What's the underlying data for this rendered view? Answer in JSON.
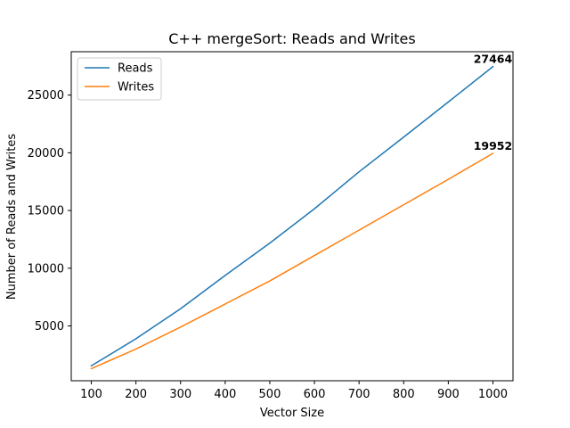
{
  "chart_data": {
    "type": "line",
    "title": "C++ mergeSort: Reads and Writes",
    "xlabel": "Vector Size",
    "ylabel": "Number of Reads and Writes",
    "x": [
      100,
      200,
      300,
      400,
      500,
      600,
      700,
      800,
      900,
      1000
    ],
    "xticks": [
      100,
      200,
      300,
      400,
      500,
      600,
      700,
      800,
      900,
      1000
    ],
    "yticks": [
      5000,
      10000,
      15000,
      20000,
      25000
    ],
    "xlim": [
      55,
      1045
    ],
    "ylim": [
      251,
      28757
    ],
    "grid": false,
    "legend_position": "upper-left",
    "series": [
      {
        "name": "Reads",
        "color": "#1f77b4",
        "values": [
          1544,
          3888,
          6488,
          9376,
          12176,
          15152,
          18352,
          21360,
          24400,
          27464
        ]
      },
      {
        "name": "Writes",
        "color": "#ff7f0e",
        "values": [
          1300,
          3000,
          4900,
          6900,
          8900,
          11100,
          13300,
          15500,
          17700,
          19952
        ]
      }
    ],
    "annotations": [
      {
        "text": "27464",
        "x": 1000,
        "y": 27464
      },
      {
        "text": "19952",
        "x": 1000,
        "y": 19952
      }
    ]
  }
}
